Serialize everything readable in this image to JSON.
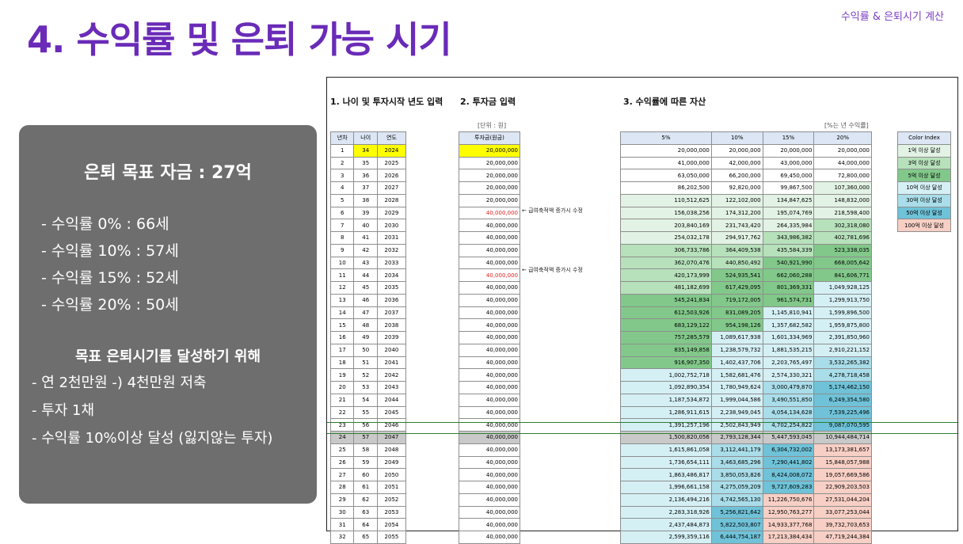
{
  "header": {
    "title": "4. 수익률 및 은퇴 가능 시기",
    "top_right": "수익률 & 은퇴시기 계산"
  },
  "panel": {
    "goal": "은퇴 목표 자금 : 27억",
    "rates": [
      "- 수익률   0% : 66세",
      "- 수익률 10% : 57세",
      "- 수익률 15% : 52세",
      "- 수익률 20% : 50세"
    ],
    "subtitle": "목표 은퇴시기를 달성하기 위해",
    "plan": [
      "- 연 2천만원 -) 4천만원 저축",
      "- 투자 1채",
      "- 수익률 10%이상 달성 (잃지않는 투자)"
    ]
  },
  "sheet": {
    "sec1": "1. 나이 및 투자시작 년도 입력",
    "sec2": "2. 투자금 입력",
    "sec3": "3. 수익률에 따른 자산",
    "unit_label": "[단위 : 원]",
    "rate_label": "[%는 년 수익률]",
    "left_headers": [
      "년차",
      "나이",
      "연도"
    ],
    "inv_header": "투자금(원금)",
    "rate_headers": [
      "5%",
      "10%",
      "15%",
      "20%"
    ],
    "note": "← 급여축적액 증가시 수정",
    "rows": [
      [
        "1",
        "34",
        "2024",
        "20,000,000",
        "20,000,000",
        "20,000,000",
        "20,000,000",
        "20,000,000"
      ],
      [
        "2",
        "35",
        "2025",
        "20,000,000",
        "41,000,000",
        "42,000,000",
        "43,000,000",
        "44,000,000"
      ],
      [
        "3",
        "36",
        "2026",
        "20,000,000",
        "63,050,000",
        "66,200,000",
        "69,450,000",
        "72,800,000"
      ],
      [
        "4",
        "37",
        "2027",
        "20,000,000",
        "86,202,500",
        "92,820,000",
        "99,867,500",
        "107,360,000"
      ],
      [
        "5",
        "38",
        "2028",
        "20,000,000",
        "110,512,625",
        "122,102,000",
        "134,847,625",
        "148,832,000"
      ],
      [
        "6",
        "39",
        "2029",
        "40,000,000",
        "156,038,256",
        "174,312,200",
        "195,074,769",
        "218,598,400"
      ],
      [
        "7",
        "40",
        "2030",
        "40,000,000",
        "203,840,169",
        "231,743,420",
        "264,335,984",
        "302,318,080"
      ],
      [
        "8",
        "41",
        "2031",
        "40,000,000",
        "254,032,178",
        "294,917,762",
        "343,986,382",
        "402,781,696"
      ],
      [
        "9",
        "42",
        "2032",
        "40,000,000",
        "306,733,786",
        "364,409,538",
        "435,584,339",
        "523,338,035"
      ],
      [
        "10",
        "43",
        "2033",
        "40,000,000",
        "362,070,476",
        "440,850,492",
        "540,921,990",
        "668,005,642"
      ],
      [
        "11",
        "44",
        "2034",
        "40,000,000",
        "420,173,999",
        "524,935,541",
        "662,060,288",
        "841,606,771"
      ],
      [
        "12",
        "45",
        "2035",
        "40,000,000",
        "481,182,699",
        "617,429,095",
        "801,369,331",
        "1,049,928,125"
      ],
      [
        "13",
        "46",
        "2036",
        "40,000,000",
        "545,241,834",
        "719,172,005",
        "961,574,731",
        "1,299,913,750"
      ],
      [
        "14",
        "47",
        "2037",
        "40,000,000",
        "612,503,926",
        "831,089,205",
        "1,145,810,941",
        "1,599,896,500"
      ],
      [
        "15",
        "48",
        "2038",
        "40,000,000",
        "683,129,122",
        "954,198,126",
        "1,357,682,582",
        "1,959,875,800"
      ],
      [
        "16",
        "49",
        "2039",
        "40,000,000",
        "757,285,579",
        "1,089,617,938",
        "1,601,334,969",
        "2,391,850,960"
      ],
      [
        "17",
        "50",
        "2040",
        "40,000,000",
        "835,149,858",
        "1,238,579,732",
        "1,881,535,215",
        "2,910,221,152"
      ],
      [
        "18",
        "51",
        "2041",
        "40,000,000",
        "916,907,350",
        "1,402,437,706",
        "2,203,765,497",
        "3,532,265,382"
      ],
      [
        "19",
        "52",
        "2042",
        "40,000,000",
        "1,002,752,718",
        "1,582,681,476",
        "2,574,330,321",
        "4,278,718,458"
      ],
      [
        "20",
        "53",
        "2043",
        "40,000,000",
        "1,092,890,354",
        "1,780,949,624",
        "3,000,479,870",
        "5,174,462,150"
      ],
      [
        "21",
        "54",
        "2044",
        "40,000,000",
        "1,187,534,872",
        "1,999,044,586",
        "3,490,551,850",
        "6,249,354,580"
      ],
      [
        "22",
        "55",
        "2045",
        "40,000,000",
        "1,286,911,615",
        "2,238,949,045",
        "4,054,134,628",
        "7,539,225,496"
      ],
      [
        "23",
        "56",
        "2046",
        "40,000,000",
        "1,391,257,196",
        "2,502,843,949",
        "4,702,254,822",
        "9,087,070,595"
      ],
      [
        "24",
        "57",
        "2047",
        "40,000,000",
        "1,500,820,056",
        "2,793,128,344",
        "5,447,593,045",
        "10,944,484,714"
      ],
      [
        "25",
        "58",
        "2048",
        "40,000,000",
        "1,615,861,058",
        "3,112,441,179",
        "6,304,732,002",
        "13,173,381,657"
      ],
      [
        "26",
        "59",
        "2049",
        "40,000,000",
        "1,736,654,111",
        "3,463,685,296",
        "7,290,441,802",
        "15,848,057,988"
      ],
      [
        "27",
        "60",
        "2050",
        "40,000,000",
        "1,863,486,817",
        "3,850,053,826",
        "8,424,008,072",
        "19,057,669,586"
      ],
      [
        "28",
        "61",
        "2051",
        "40,000,000",
        "1,996,661,158",
        "4,275,059,209",
        "9,727,609,283",
        "22,909,203,503"
      ],
      [
        "29",
        "62",
        "2052",
        "40,000,000",
        "2,136,494,216",
        "4,742,565,130",
        "11,226,750,676",
        "27,531,044,204"
      ],
      [
        "30",
        "63",
        "2053",
        "40,000,000",
        "2,283,318,926",
        "5,256,821,642",
        "12,950,763,277",
        "33,077,253,044"
      ],
      [
        "31",
        "64",
        "2054",
        "40,000,000",
        "2,437,484,873",
        "5,822,503,807",
        "14,933,377,768",
        "39,732,703,653"
      ],
      [
        "32",
        "65",
        "2055",
        "40,000,000",
        "2,599,359,116",
        "6,444,754,187",
        "17,213,384,434",
        "47,719,244,384"
      ]
    ],
    "legend": {
      "title": "Color Index",
      "items": [
        {
          "label": "1억 이상 달성",
          "color": "#e2f2e4"
        },
        {
          "label": "3억 이상 달성",
          "color": "#b7e1bb"
        },
        {
          "label": "5억 이상 달성",
          "color": "#82c88a"
        },
        {
          "label": "10억 이상 달성",
          "color": "#d5f0f5"
        },
        {
          "label": "30억 이상 달성",
          "color": "#a9dde9"
        },
        {
          "label": "50억 이상 달성",
          "color": "#6fc2d8"
        },
        {
          "label": "100억 이상 달성",
          "color": "#f7cfc5"
        }
      ]
    }
  }
}
